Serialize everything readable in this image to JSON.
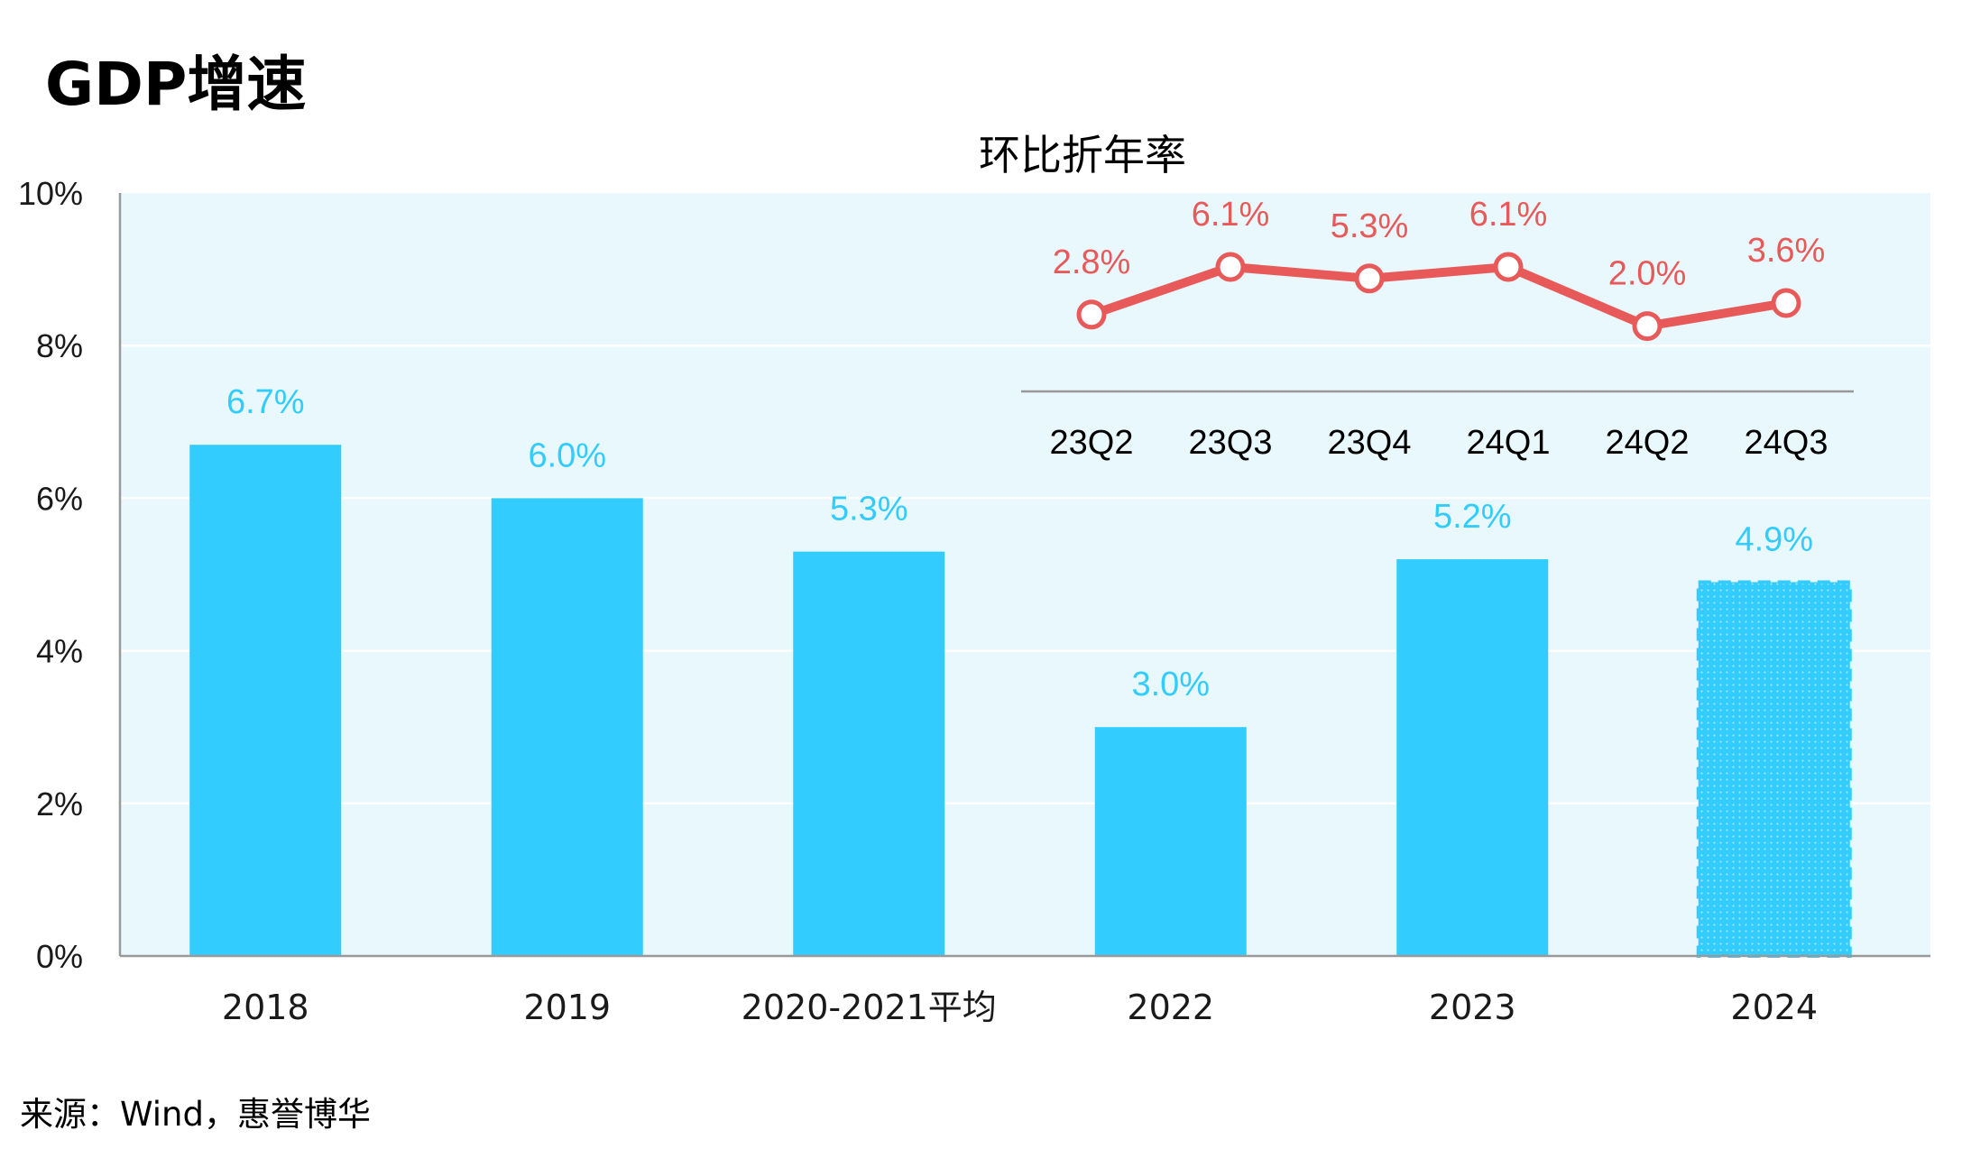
{
  "title": "GDP增速",
  "source": "来源：Wind，惠誉博华",
  "colors": {
    "bar": "#33ccff",
    "plot_bg": "#e8f8fd",
    "line": "#e85a5a",
    "axis": "#999999"
  },
  "chart_data": [
    {
      "type": "bar",
      "categories": [
        "2018",
        "2019",
        "2020-2021平均",
        "2022",
        "2023",
        "2024"
      ],
      "values": [
        6.7,
        6.0,
        5.3,
        3.0,
        5.2,
        4.9
      ],
      "value_labels": [
        "6.7%",
        "6.0%",
        "5.3%",
        "3.0%",
        "5.2%",
        "4.9%"
      ],
      "estimate_last": true,
      "yticks": [
        "0%",
        "2%",
        "4%",
        "6%",
        "8%",
        "10%"
      ],
      "ylim": [
        0,
        10
      ],
      "grid": true
    },
    {
      "type": "line",
      "title": "环比折年率",
      "categories": [
        "23Q2",
        "23Q3",
        "23Q4",
        "24Q1",
        "24Q2",
        "24Q3"
      ],
      "values": [
        2.8,
        6.1,
        5.3,
        6.1,
        2.0,
        3.6
      ],
      "value_labels": [
        "2.8%",
        "6.1%",
        "5.3%",
        "6.1%",
        "2.0%",
        "3.6%"
      ]
    }
  ]
}
